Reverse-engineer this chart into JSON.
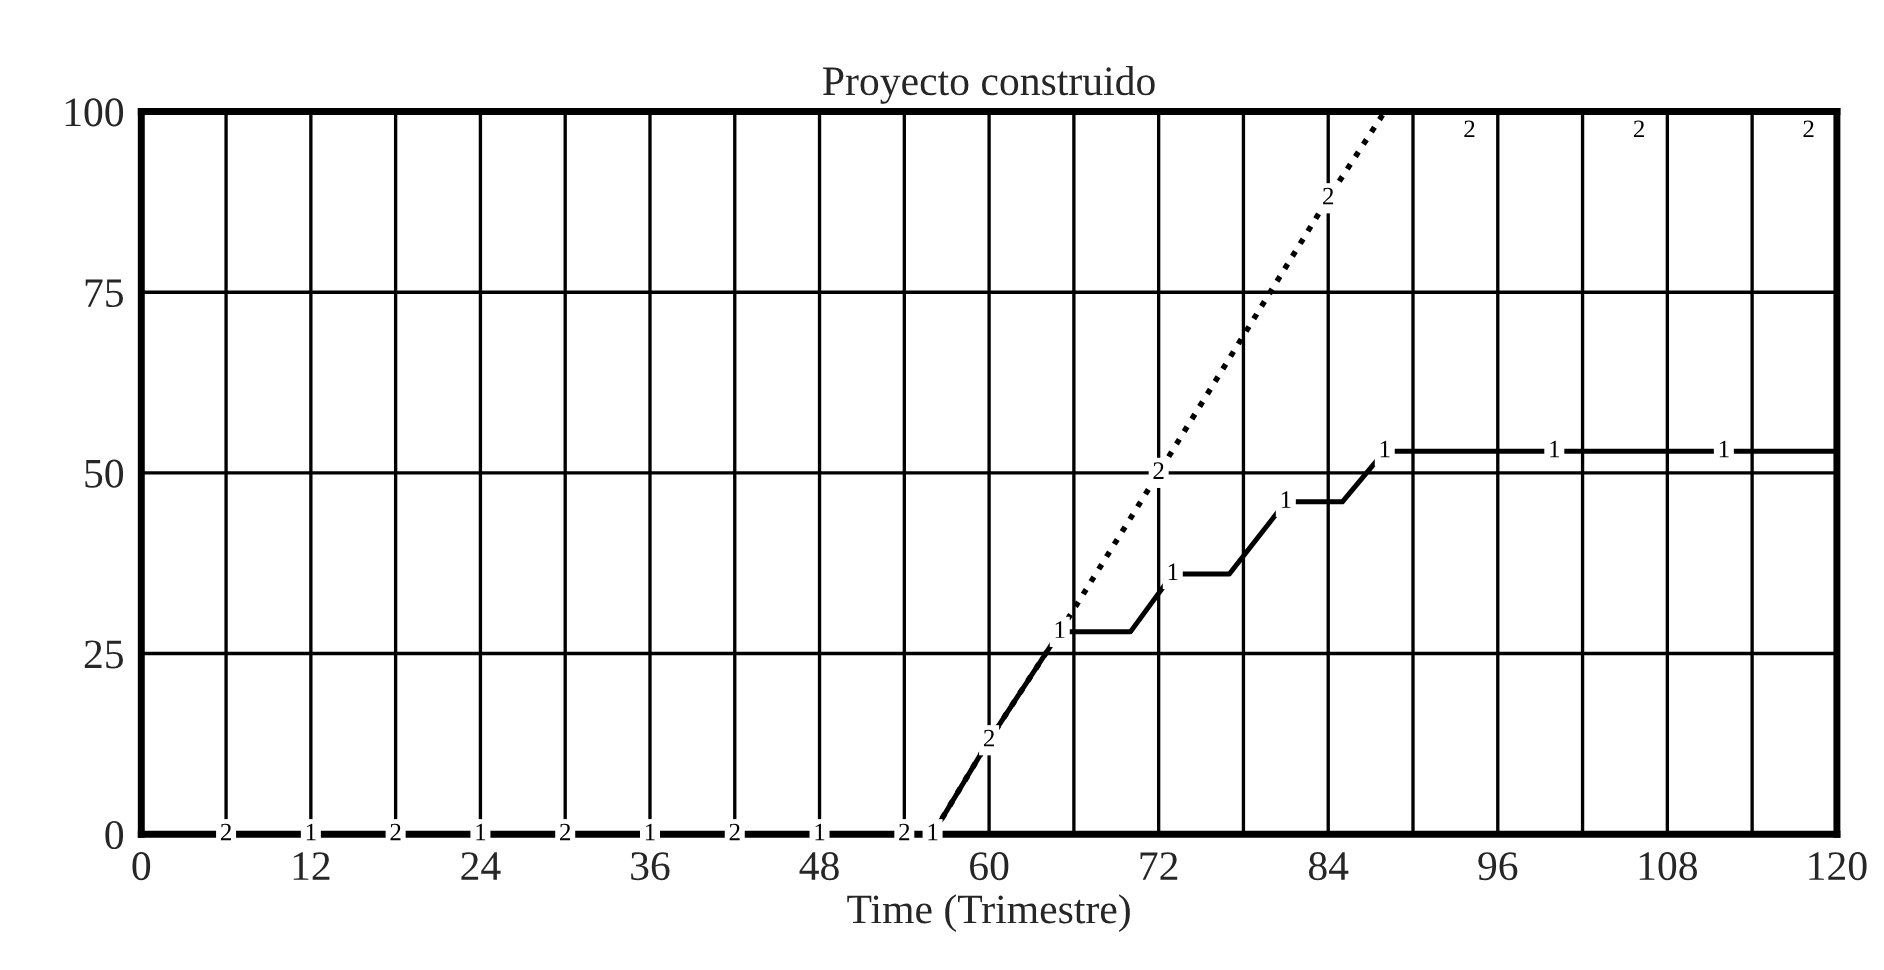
{
  "chart_data": {
    "type": "line",
    "title": "Proyecto construido",
    "xlabel": "Time (Trimestre)",
    "xlim": [
      0,
      120
    ],
    "ylim": [
      0,
      100
    ],
    "xticks": [
      0,
      {
        "value": 6,
        "label": null
      },
      12,
      {
        "value": 18,
        "label": null
      },
      24,
      {
        "value": 30,
        "label": null
      },
      36,
      {
        "value": 42,
        "label": null
      },
      48,
      {
        "value": 54,
        "label": null
      },
      60,
      {
        "value": 66,
        "label": null
      },
      72,
      {
        "value": 78,
        "label": null
      },
      84,
      {
        "value": 90,
        "label": null
      },
      96,
      {
        "value": 102,
        "label": null
      },
      108,
      {
        "value": 114,
        "label": null
      },
      120
    ],
    "yticks": [
      0,
      25,
      50,
      75,
      100
    ],
    "grid": true,
    "legend": false,
    "series": [
      {
        "name": "1",
        "color": "#000000",
        "line_style": "solid",
        "x": [
          0,
          6,
          12,
          18,
          24,
          30,
          36,
          42,
          48,
          54,
          56,
          60,
          65,
          70,
          73,
          77,
          81,
          85,
          88,
          94,
          100,
          106,
          112,
          118,
          120
        ],
        "values": [
          0,
          0,
          0,
          0,
          0,
          0,
          0,
          0,
          0,
          0,
          0,
          13,
          28,
          28,
          36,
          36,
          46,
          46,
          53,
          53,
          53,
          53,
          53,
          53,
          53
        ]
      },
      {
        "name": "2",
        "color": "#000000",
        "line_style": "dotted",
        "x": [
          0,
          6,
          12,
          18,
          24,
          30,
          36,
          42,
          48,
          54,
          56,
          60,
          65,
          72,
          78,
          84,
          88,
          94,
          100,
          106,
          112,
          118,
          120
        ],
        "values": [
          0,
          0,
          0,
          0,
          0,
          0,
          0,
          0,
          0,
          0,
          0,
          13,
          28,
          50,
          69,
          88,
          100,
          100,
          100,
          100,
          100,
          100,
          100
        ]
      }
    ]
  }
}
